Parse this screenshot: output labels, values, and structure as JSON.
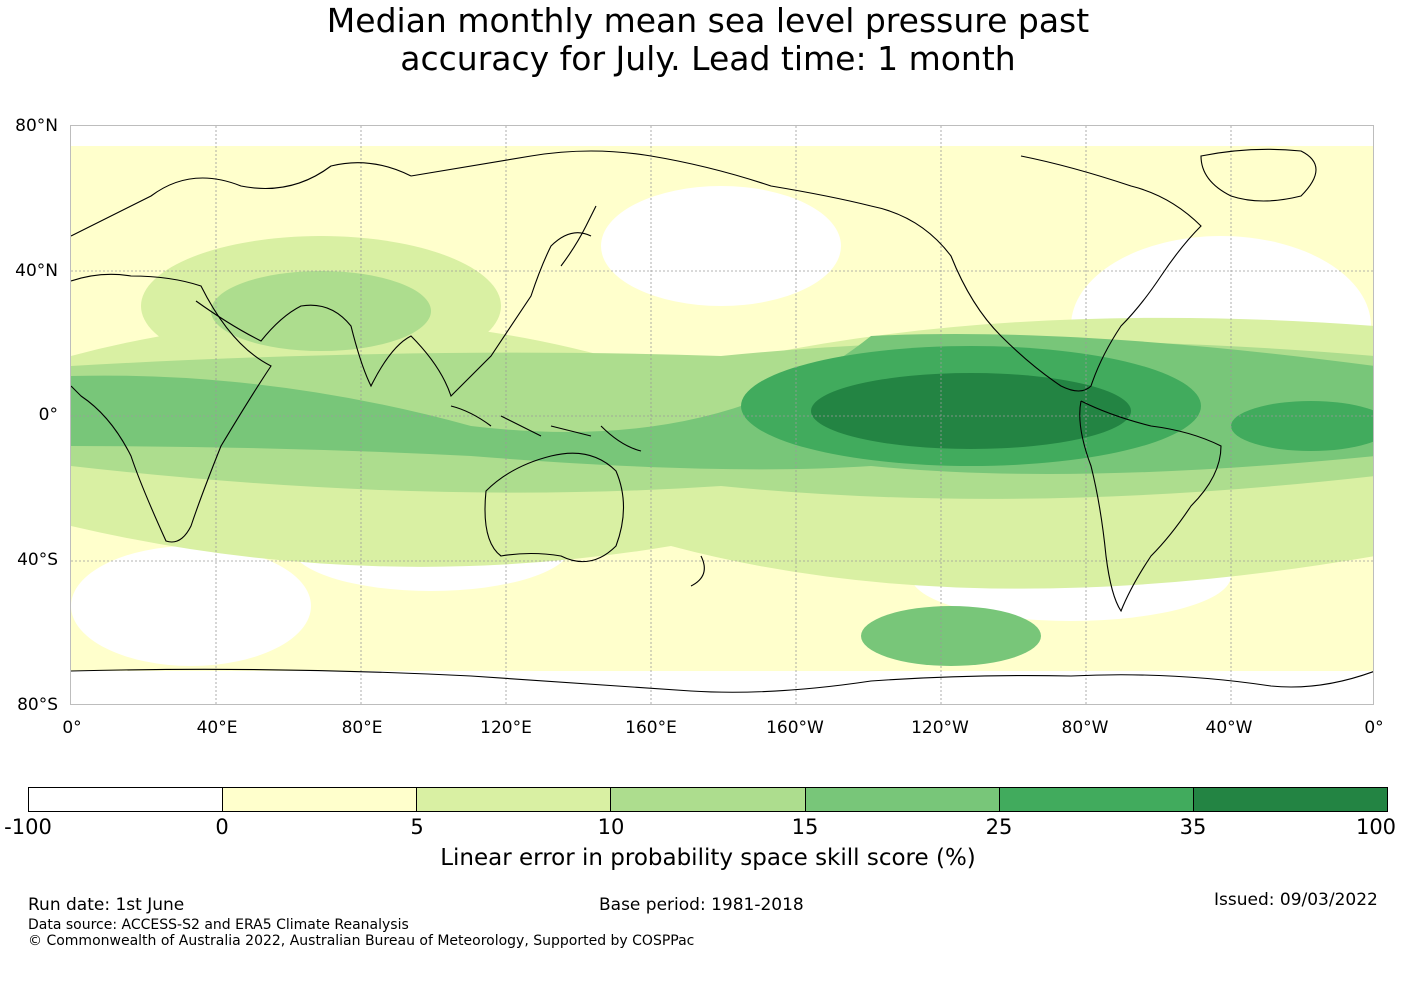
{
  "title": {
    "line1": "Median monthly mean sea level pressure past",
    "line2": "accuracy for July. Lead time: 1 month"
  },
  "map": {
    "lat_labels": [
      "80°N",
      "40°N",
      "0°",
      "40°S",
      "80°S"
    ],
    "lon_labels": [
      "0°",
      "40°E",
      "80°E",
      "120°E",
      "160°E",
      "160°W",
      "120°W",
      "80°W",
      "40°W",
      "0°"
    ]
  },
  "colorbar": {
    "ticks": [
      "-100",
      "0",
      "5",
      "10",
      "15",
      "25",
      "35",
      "100"
    ],
    "colors": [
      "#ffffff",
      "#ffffcc",
      "#d9f0a3",
      "#addd8e",
      "#78c679",
      "#41ab5d",
      "#238443"
    ],
    "label": "Linear error in probability space skill score (%)"
  },
  "footer": {
    "run_date": "Run date: 1st June",
    "base_period": "Base period: 1981-2018",
    "issued": "Issued: 09/03/2022",
    "data_source": "Data source: ACCESS-S2 and ERA5 Climate Reanalysis",
    "copyright": "© Commonwealth of Australia 2022, Australian Bureau of Meteorology, Supported by COSPPac"
  }
}
